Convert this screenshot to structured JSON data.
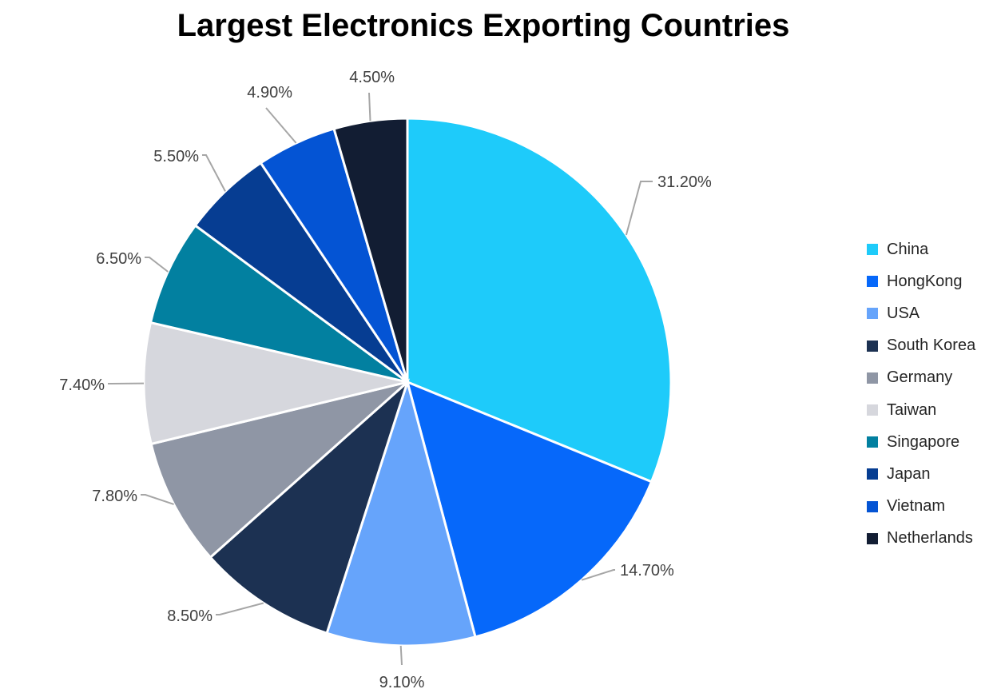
{
  "chart_data": {
    "type": "pie",
    "title": "Largest Electronics Exporting Countries",
    "categories": [
      "China",
      "HongKong",
      "USA",
      "South Korea",
      "Germany",
      "Taiwan",
      "Singapore",
      "Japan",
      "Vietnam",
      "Netherlands"
    ],
    "values": [
      31.2,
      14.7,
      9.1,
      8.5,
      7.8,
      7.4,
      6.5,
      5.5,
      4.9,
      4.5
    ],
    "value_labels": [
      "31.20%",
      "14.70%",
      "9.10%",
      "8.50%",
      "7.80%",
      "7.40%",
      "6.50%",
      "5.50%",
      "4.90%",
      "4.50%"
    ],
    "colors": [
      "#1ecbfa",
      "#0668fa",
      "#66a4fb",
      "#1c3152",
      "#8f96a5",
      "#d6d7dd",
      "#0280a0",
      "#063d92",
      "#0454d4",
      "#121d33"
    ],
    "start_angle": "12 o'clock",
    "direction": "clockwise",
    "legend_position": "right"
  }
}
